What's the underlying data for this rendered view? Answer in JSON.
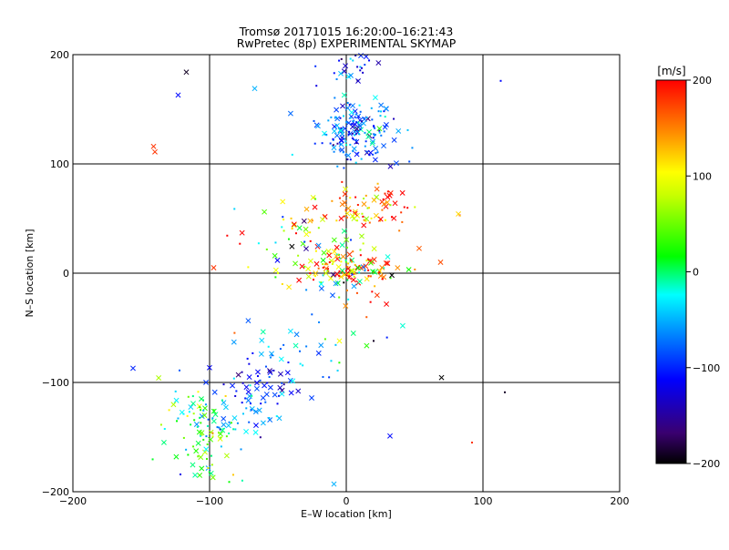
{
  "chart_data": {
    "type": "scatter",
    "title_line1": "Tromsø 20171015 16:20:00–16:21:43",
    "title_line2": "RwPretec (8p) EXPERIMENTAL SKYMAP",
    "xlabel": "E–W location [km]",
    "ylabel": "N–S location [km]",
    "xlim": [
      -200,
      200
    ],
    "ylim": [
      -200,
      200
    ],
    "xticks": [
      "−200",
      "−100",
      "0",
      "100",
      "200"
    ],
    "yticks": [
      "−200",
      "−100",
      "0",
      "100",
      "200"
    ],
    "xtick_values": [
      -200,
      -100,
      0,
      100,
      200
    ],
    "ytick_values": [
      -200,
      -100,
      0,
      100,
      200
    ],
    "grid": true,
    "colorbar": {
      "label": "[m/s]",
      "range": [
        -200,
        200
      ],
      "tick_labels": [
        "200",
        "100",
        "0",
        "−100",
        "−200"
      ],
      "tick_values": [
        200,
        100,
        0,
        -100,
        -200
      ],
      "colormap": "rainbow-black-to-red"
    },
    "markers": [
      "x",
      "dot"
    ],
    "clusters": [
      {
        "center": [
          8,
          130
        ],
        "spread": [
          14,
          14
        ],
        "count": 170,
        "velocity_mean": -80,
        "velocity_spread": 35
      },
      {
        "center": [
          2,
          190
        ],
        "spread": [
          12,
          10
        ],
        "count": 35,
        "velocity_mean": -110,
        "velocity_spread": 40
      },
      {
        "center": [
          10,
          58
        ],
        "spread": [
          22,
          10
        ],
        "count": 80,
        "velocity_mean": 150,
        "velocity_spread": 60
      },
      {
        "center": [
          0,
          5
        ],
        "spread": [
          22,
          12
        ],
        "count": 140,
        "velocity_mean": 120,
        "velocity_spread": 110
      },
      {
        "center": [
          -40,
          30
        ],
        "spread": [
          25,
          15
        ],
        "count": 40,
        "velocity_mean": 60,
        "velocity_spread": 120
      },
      {
        "center": [
          -60,
          -105
        ],
        "spread": [
          18,
          14
        ],
        "count": 55,
        "velocity_mean": -110,
        "velocity_spread": 25
      },
      {
        "center": [
          -40,
          -70
        ],
        "spread": [
          20,
          15
        ],
        "count": 25,
        "velocity_mean": -50,
        "velocity_spread": 30
      },
      {
        "center": [
          -105,
          -150
        ],
        "spread": [
          14,
          25
        ],
        "count": 90,
        "velocity_mean": 20,
        "velocity_spread": 50
      },
      {
        "center": [
          -80,
          -130
        ],
        "spread": [
          18,
          12
        ],
        "count": 40,
        "velocity_mean": -50,
        "velocity_spread": 30
      },
      {
        "center": [
          -10,
          -40
        ],
        "spread": [
          40,
          40
        ],
        "count": 20,
        "velocity_mean": 0,
        "velocity_spread": 120
      }
    ],
    "points": [
      {
        "x": -117,
        "y": 184,
        "v": -190,
        "m": "x"
      },
      {
        "x": -123,
        "y": 163,
        "v": -110,
        "m": "x"
      },
      {
        "x": -141,
        "y": 116,
        "v": 180,
        "m": "x"
      },
      {
        "x": -140,
        "y": 111,
        "v": 180,
        "m": "x"
      },
      {
        "x": -67,
        "y": 169,
        "v": -50,
        "m": "x"
      },
      {
        "x": 113,
        "y": 176,
        "v": -110,
        "m": "dot"
      },
      {
        "x": -97,
        "y": 5,
        "v": 180,
        "m": "x"
      },
      {
        "x": 69,
        "y": 10,
        "v": 170,
        "m": "x"
      },
      {
        "x": 83,
        "y": 53,
        "v": 180,
        "m": "dot"
      },
      {
        "x": -156,
        "y": -87,
        "v": -100,
        "m": "x"
      },
      {
        "x": -122,
        "y": -89,
        "v": -80,
        "m": "dot"
      },
      {
        "x": 116,
        "y": -109,
        "v": -190,
        "m": "dot"
      },
      {
        "x": 92,
        "y": -155,
        "v": 180,
        "m": "dot"
      },
      {
        "x": 32,
        "y": -149,
        "v": -110,
        "m": "x"
      },
      {
        "x": -9,
        "y": -193,
        "v": -50,
        "m": "x"
      },
      {
        "x": 20,
        "y": -62,
        "v": -190,
        "m": "dot"
      },
      {
        "x": -5,
        "y": -62,
        "v": 100,
        "m": "x"
      }
    ]
  }
}
